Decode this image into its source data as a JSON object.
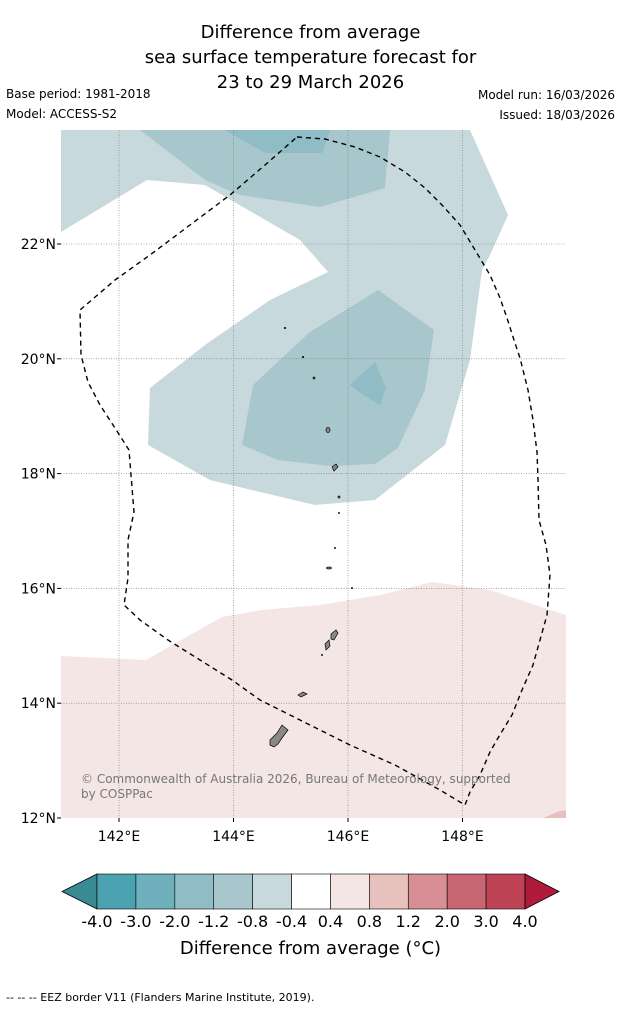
{
  "title": {
    "line1": "Difference from average",
    "line2": "sea surface temperature forecast for",
    "line3": "23 to 29 March 2026"
  },
  "meta": {
    "base_period": "Base period: 1981-2018",
    "model": "Model: ACCESS-S2",
    "model_run": "Model run: 16/03/2026",
    "issued": "Issued: 18/03/2026"
  },
  "map": {
    "lon_range": [
      141,
      149.8
    ],
    "lat_range": [
      12,
      24
    ],
    "lat_ticks": [
      {
        "value": 22,
        "label": "22°N"
      },
      {
        "value": 20,
        "label": "20°N"
      },
      {
        "value": 18,
        "label": "18°N"
      },
      {
        "value": 16,
        "label": "16°N"
      },
      {
        "value": 14,
        "label": "14°N"
      },
      {
        "value": 12,
        "label": "12°N"
      }
    ],
    "lon_ticks": [
      {
        "value": 142,
        "label": "142°E"
      },
      {
        "value": 144,
        "label": "144°E"
      },
      {
        "value": 146,
        "label": "146°E"
      },
      {
        "value": 148,
        "label": "148°E"
      }
    ],
    "grid": true,
    "copyright": "© Commonwealth of Australia 2026, Bureau of Meteorology, supported by COSPPac"
  },
  "colorbar": {
    "labels": [
      "-4.0",
      "-3.0",
      "-2.0",
      "-1.2",
      "-0.8",
      "-0.4",
      "0.4",
      "0.8",
      "1.2",
      "2.0",
      "3.0",
      "4.0"
    ],
    "colors": [
      "#3a8a94",
      "#4ba3b2",
      "#6eb0bc",
      "#8fbcc5",
      "#a8c7cc",
      "#c7d9dd",
      "#ffffff",
      "#f4e6e5",
      "#e6c1bd",
      "#d78e95",
      "#c86673",
      "#be4455",
      "#b01b3c"
    ],
    "title": "Difference from average (°C)"
  },
  "footer": "-- -- -- EEZ border V11 (Flanders Marine Institute, 2019)."
}
